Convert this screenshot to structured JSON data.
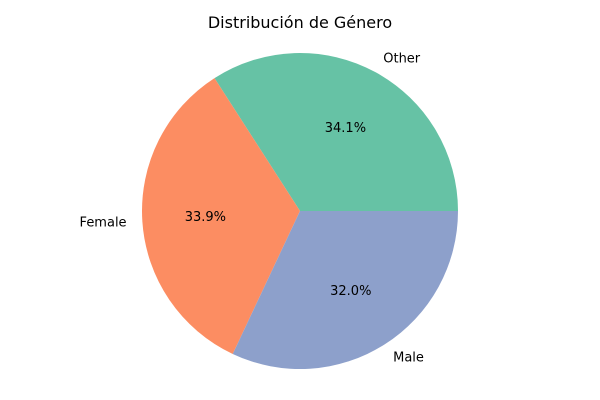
{
  "chart_data": {
    "type": "pie",
    "title": "Distribución de Género",
    "slices": [
      {
        "label": "Other",
        "value": 34.1,
        "display": "34.1%",
        "color": "#66c2a5"
      },
      {
        "label": "Female",
        "value": 33.9,
        "display": "33.9%",
        "color": "#fc8d62"
      },
      {
        "label": "Male",
        "value": 32.0,
        "display": "32.0%",
        "color": "#8da0cb"
      }
    ],
    "start_angle_deg": 0,
    "direction": "counterclockwise",
    "legend": "none"
  }
}
